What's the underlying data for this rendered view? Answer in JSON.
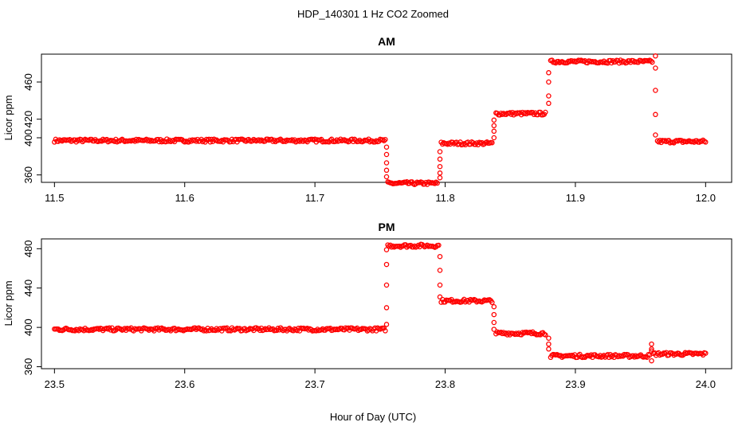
{
  "figure": {
    "title": "HDP_140301  1 Hz CO2 Zoomed",
    "xlabel": "Hour of Day (UTC)"
  },
  "colors": {
    "points": "#ff0000",
    "axes": "#000000",
    "background": "#ffffff"
  },
  "chart_data": [
    {
      "type": "scatter",
      "title": "AM",
      "xlabel": "",
      "ylabel": "Licor ppm",
      "xlim": [
        11.49,
        12.02
      ],
      "ylim": [
        352,
        490
      ],
      "xticks": [
        "11.5",
        "11.6",
        "11.7",
        "11.8",
        "11.9",
        "12.0"
      ],
      "yticks": [
        "360",
        "400",
        "420",
        "460"
      ],
      "grid": false,
      "series": [
        {
          "marker": "open-circle",
          "segments": [
            {
              "x_start": 11.5,
              "x_end": 11.754,
              "y": 397
            },
            {
              "x_start": 11.756,
              "x_end": 11.794,
              "y": 351
            },
            {
              "x_start": 11.797,
              "x_end": 11.836,
              "y": 394
            },
            {
              "x_start": 11.839,
              "x_end": 11.877,
              "y": 426
            },
            {
              "x_start": 11.881,
              "x_end": 11.959,
              "y": 482
            },
            {
              "x_start": 11.963,
              "x_end": 12.0,
              "y": 396
            }
          ],
          "transitions": [
            {
              "x": 11.755,
              "y": [
                390,
                382,
                373,
                365,
                358
              ]
            },
            {
              "x": 11.796,
              "y": [
                357,
                362,
                369,
                377,
                385
              ]
            },
            {
              "x": 11.8375,
              "y": [
                400,
                407,
                413,
                419
              ]
            },
            {
              "x": 11.8795,
              "y": [
                437,
                445,
                460,
                470
              ]
            },
            {
              "x": 11.9615,
              "y": [
                488,
                475,
                451,
                425,
                403
              ]
            }
          ]
        }
      ]
    },
    {
      "type": "scatter",
      "title": "PM",
      "xlabel": "",
      "ylabel": "Licor ppm",
      "xlim": [
        23.49,
        24.02
      ],
      "ylim": [
        358,
        490
      ],
      "xticks": [
        "23.5",
        "23.6",
        "23.7",
        "23.8",
        "23.9",
        "24.0"
      ],
      "yticks": [
        "360",
        "400",
        "440",
        "480"
      ],
      "grid": false,
      "series": [
        {
          "marker": "open-circle",
          "segments": [
            {
              "x_start": 23.5,
              "x_end": 23.754,
              "y": 398
            },
            {
              "x_start": 23.756,
              "x_end": 23.795,
              "y": 483
            },
            {
              "x_start": 23.797,
              "x_end": 23.836,
              "y": 427
            },
            {
              "x_start": 23.839,
              "x_end": 23.877,
              "y": 394
            },
            {
              "x_start": 23.881,
              "x_end": 23.957,
              "y": 371
            },
            {
              "x_start": 23.96,
              "x_end": 24.0,
              "y": 373
            }
          ],
          "transitions": [
            {
              "x": 23.755,
              "y": [
                403,
                420,
                443,
                464,
                479
              ]
            },
            {
              "x": 23.796,
              "y": [
                472,
                458,
                443,
                431
              ]
            },
            {
              "x": 23.8375,
              "y": [
                421,
                413,
                405,
                398
              ]
            },
            {
              "x": 23.8795,
              "y": [
                389,
                383,
                378
              ]
            },
            {
              "x": 23.9585,
              "y": [
                383,
                378,
                376,
                366
              ]
            }
          ]
        }
      ]
    }
  ]
}
